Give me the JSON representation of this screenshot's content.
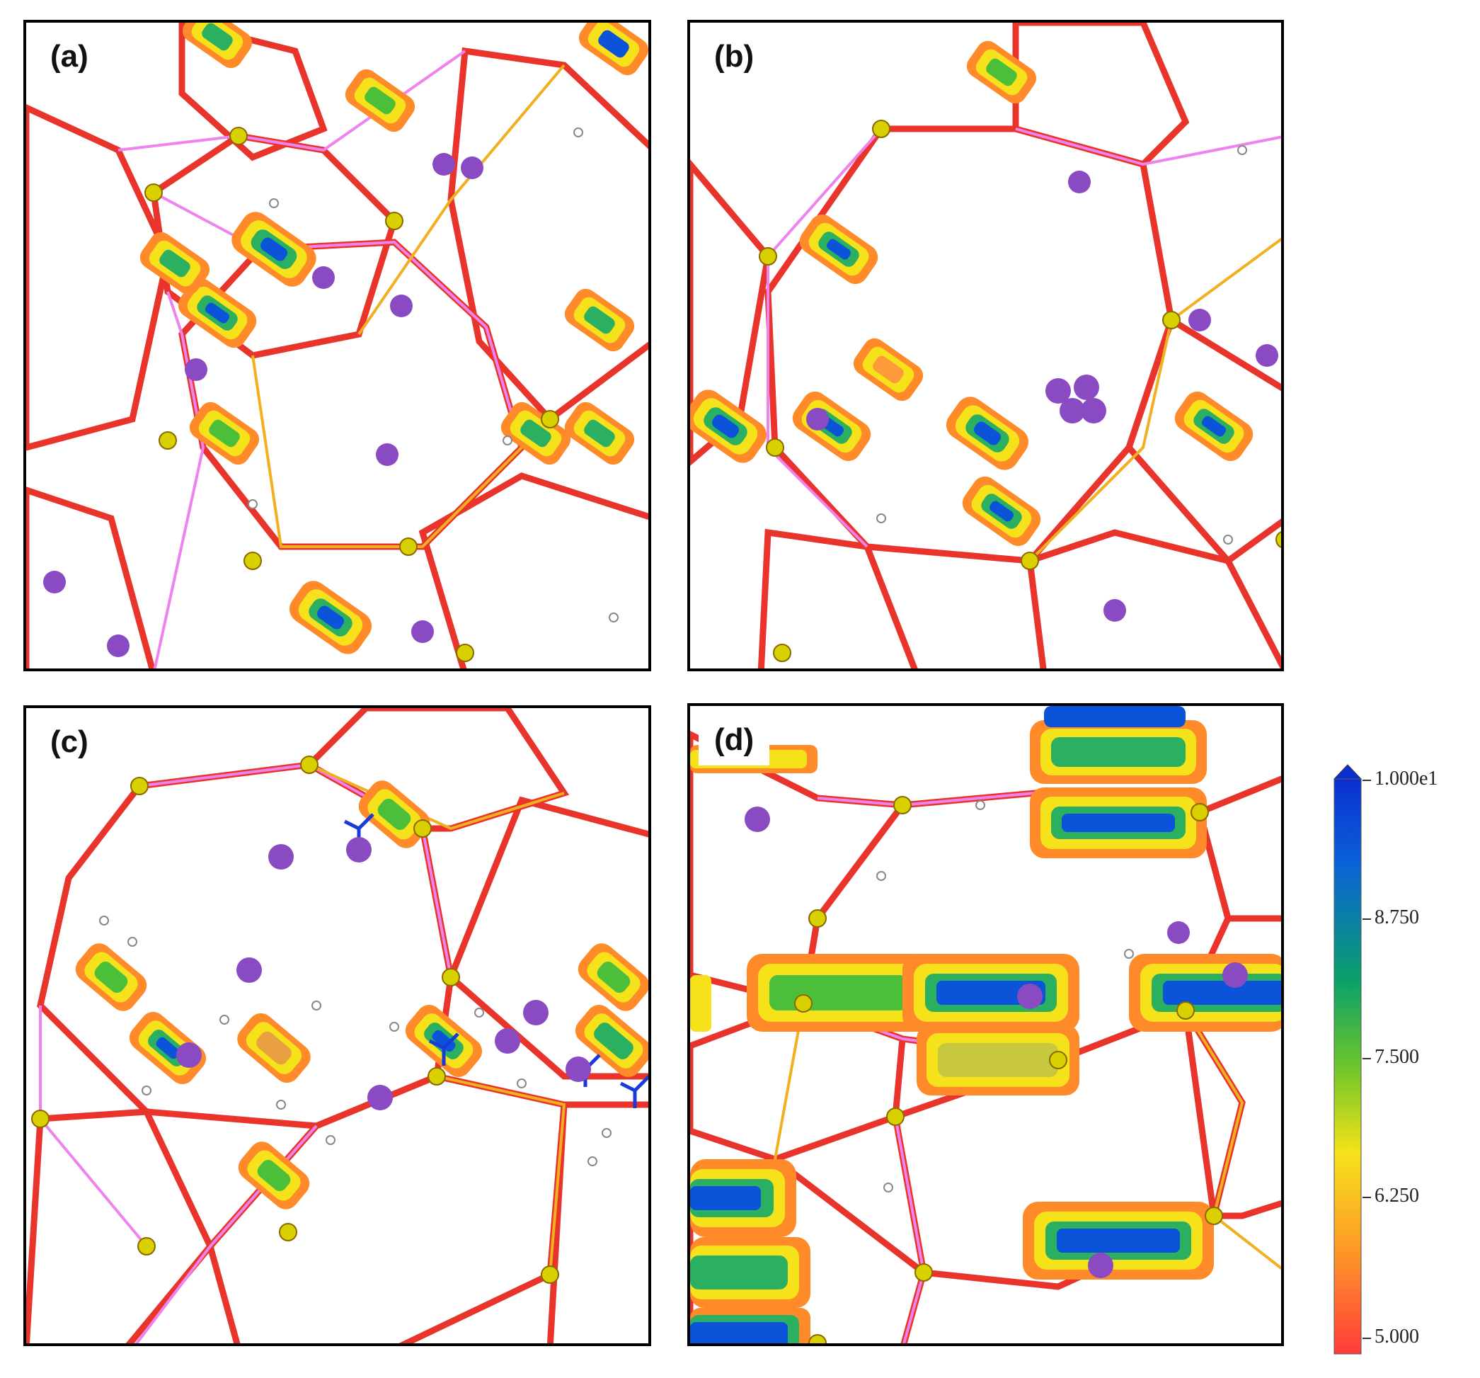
{
  "panels": [
    {
      "id": "a",
      "label": "(a)"
    },
    {
      "id": "b",
      "label": "(b)"
    },
    {
      "id": "c",
      "label": "(c)"
    },
    {
      "id": "d",
      "label": "(d)"
    }
  ],
  "colorbar": {
    "ticks": [
      "1.000e1",
      "8.750",
      "7.500",
      "6.250",
      "5.000"
    ],
    "min": 5.0,
    "max": 10.0,
    "colors": [
      "#ff3b3b",
      "#ff8a2a",
      "#f5e21a",
      "#6cc62a",
      "#0aa06a",
      "#0b63d8",
      "#0a2fd0"
    ]
  }
}
